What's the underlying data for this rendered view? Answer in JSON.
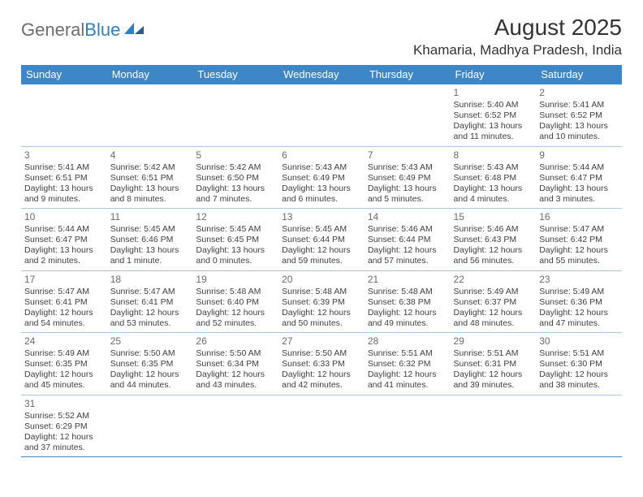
{
  "brand": {
    "part1": "General",
    "part2": "Blue"
  },
  "title": "August 2025",
  "location": "Khamaria, Madhya Pradesh, India",
  "header_bg": "#3d87c9",
  "header_fg": "#ffffff",
  "border_color": "#3d87c9",
  "text_color": "#3f3f3f",
  "day_headers": [
    "Sunday",
    "Monday",
    "Tuesday",
    "Wednesday",
    "Thursday",
    "Friday",
    "Saturday"
  ],
  "weeks": [
    [
      null,
      null,
      null,
      null,
      null,
      {
        "d": "1",
        "sr": "5:40 AM",
        "ss": "6:52 PM",
        "dl": "13 hours and 11 minutes."
      },
      {
        "d": "2",
        "sr": "5:41 AM",
        "ss": "6:52 PM",
        "dl": "13 hours and 10 minutes."
      }
    ],
    [
      {
        "d": "3",
        "sr": "5:41 AM",
        "ss": "6:51 PM",
        "dl": "13 hours and 9 minutes."
      },
      {
        "d": "4",
        "sr": "5:42 AM",
        "ss": "6:51 PM",
        "dl": "13 hours and 8 minutes."
      },
      {
        "d": "5",
        "sr": "5:42 AM",
        "ss": "6:50 PM",
        "dl": "13 hours and 7 minutes."
      },
      {
        "d": "6",
        "sr": "5:43 AM",
        "ss": "6:49 PM",
        "dl": "13 hours and 6 minutes."
      },
      {
        "d": "7",
        "sr": "5:43 AM",
        "ss": "6:49 PM",
        "dl": "13 hours and 5 minutes."
      },
      {
        "d": "8",
        "sr": "5:43 AM",
        "ss": "6:48 PM",
        "dl": "13 hours and 4 minutes."
      },
      {
        "d": "9",
        "sr": "5:44 AM",
        "ss": "6:47 PM",
        "dl": "13 hours and 3 minutes."
      }
    ],
    [
      {
        "d": "10",
        "sr": "5:44 AM",
        "ss": "6:47 PM",
        "dl": "13 hours and 2 minutes."
      },
      {
        "d": "11",
        "sr": "5:45 AM",
        "ss": "6:46 PM",
        "dl": "13 hours and 1 minute."
      },
      {
        "d": "12",
        "sr": "5:45 AM",
        "ss": "6:45 PM",
        "dl": "13 hours and 0 minutes."
      },
      {
        "d": "13",
        "sr": "5:45 AM",
        "ss": "6:44 PM",
        "dl": "12 hours and 59 minutes."
      },
      {
        "d": "14",
        "sr": "5:46 AM",
        "ss": "6:44 PM",
        "dl": "12 hours and 57 minutes."
      },
      {
        "d": "15",
        "sr": "5:46 AM",
        "ss": "6:43 PM",
        "dl": "12 hours and 56 minutes."
      },
      {
        "d": "16",
        "sr": "5:47 AM",
        "ss": "6:42 PM",
        "dl": "12 hours and 55 minutes."
      }
    ],
    [
      {
        "d": "17",
        "sr": "5:47 AM",
        "ss": "6:41 PM",
        "dl": "12 hours and 54 minutes."
      },
      {
        "d": "18",
        "sr": "5:47 AM",
        "ss": "6:41 PM",
        "dl": "12 hours and 53 minutes."
      },
      {
        "d": "19",
        "sr": "5:48 AM",
        "ss": "6:40 PM",
        "dl": "12 hours and 52 minutes."
      },
      {
        "d": "20",
        "sr": "5:48 AM",
        "ss": "6:39 PM",
        "dl": "12 hours and 50 minutes."
      },
      {
        "d": "21",
        "sr": "5:48 AM",
        "ss": "6:38 PM",
        "dl": "12 hours and 49 minutes."
      },
      {
        "d": "22",
        "sr": "5:49 AM",
        "ss": "6:37 PM",
        "dl": "12 hours and 48 minutes."
      },
      {
        "d": "23",
        "sr": "5:49 AM",
        "ss": "6:36 PM",
        "dl": "12 hours and 47 minutes."
      }
    ],
    [
      {
        "d": "24",
        "sr": "5:49 AM",
        "ss": "6:35 PM",
        "dl": "12 hours and 45 minutes."
      },
      {
        "d": "25",
        "sr": "5:50 AM",
        "ss": "6:35 PM",
        "dl": "12 hours and 44 minutes."
      },
      {
        "d": "26",
        "sr": "5:50 AM",
        "ss": "6:34 PM",
        "dl": "12 hours and 43 minutes."
      },
      {
        "d": "27",
        "sr": "5:50 AM",
        "ss": "6:33 PM",
        "dl": "12 hours and 42 minutes."
      },
      {
        "d": "28",
        "sr": "5:51 AM",
        "ss": "6:32 PM",
        "dl": "12 hours and 41 minutes."
      },
      {
        "d": "29",
        "sr": "5:51 AM",
        "ss": "6:31 PM",
        "dl": "12 hours and 39 minutes."
      },
      {
        "d": "30",
        "sr": "5:51 AM",
        "ss": "6:30 PM",
        "dl": "12 hours and 38 minutes."
      }
    ],
    [
      {
        "d": "31",
        "sr": "5:52 AM",
        "ss": "6:29 PM",
        "dl": "12 hours and 37 minutes."
      },
      null,
      null,
      null,
      null,
      null,
      null
    ]
  ],
  "labels": {
    "sunrise": "Sunrise:",
    "sunset": "Sunset:",
    "daylight": "Daylight:"
  }
}
